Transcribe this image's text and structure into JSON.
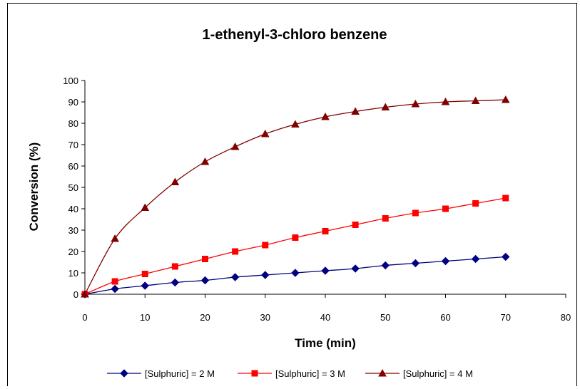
{
  "chart_data": {
    "type": "line",
    "title": "1-ethenyl-3-chloro benzene",
    "xlabel": "Time (min)",
    "ylabel": "Conversion (%)",
    "xlim": [
      0,
      80
    ],
    "ylim": [
      0,
      100
    ],
    "x_ticks": [
      "0",
      "10",
      "20",
      "30",
      "40",
      "50",
      "60",
      "70",
      "80"
    ],
    "y_ticks": [
      "0",
      "10",
      "20",
      "30",
      "40",
      "50",
      "60",
      "70",
      "80",
      "90",
      "100"
    ],
    "grid": false,
    "legend_position": "bottom",
    "x": [
      0,
      5,
      10,
      15,
      20,
      25,
      30,
      35,
      40,
      45,
      50,
      55,
      60,
      65,
      70
    ],
    "series": [
      {
        "name": "[Sulphuric] = 2 M",
        "color": "#000080",
        "marker": "diamond",
        "values": [
          0,
          2.5,
          4,
          5.5,
          6.5,
          8,
          9,
          10,
          11,
          12,
          13.5,
          14.5,
          15.5,
          16.5,
          17.5
        ]
      },
      {
        "name": "[Sulphuric] = 3 M",
        "color": "#ff0000",
        "marker": "square",
        "values": [
          0,
          6,
          9.5,
          13,
          16.5,
          20,
          23,
          26.5,
          29.5,
          32.5,
          35.5,
          38,
          40,
          42.5,
          45
        ]
      },
      {
        "name": "[Sulphuric] = 4 M",
        "color": "#800000",
        "marker": "triangle",
        "values": [
          0,
          26,
          40.5,
          52.5,
          62,
          69,
          75,
          79.5,
          83,
          85.5,
          87.5,
          89,
          90,
          90.5,
          91
        ]
      }
    ]
  }
}
